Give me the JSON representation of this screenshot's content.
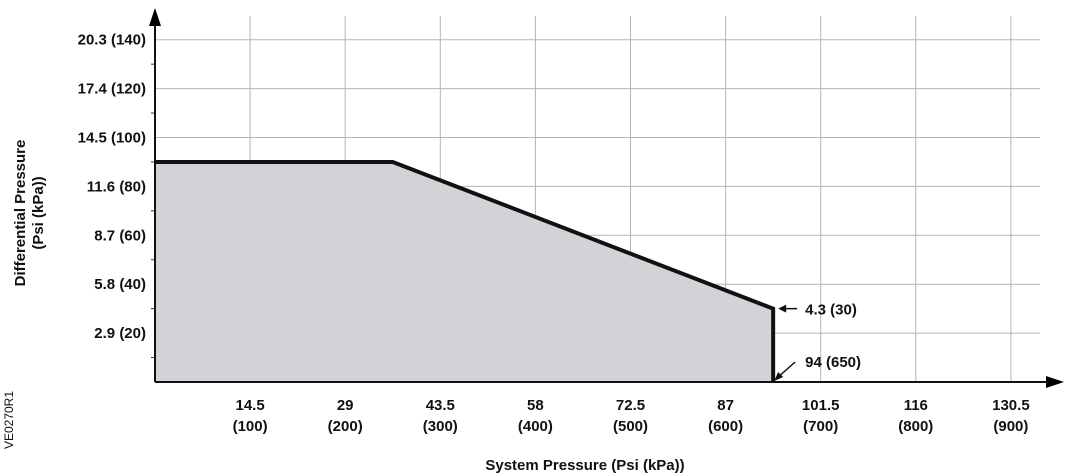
{
  "chart_data": {
    "type": "area",
    "xlabel": "System Pressure (Psi (kPa))",
    "ylabel_line1": "Differential Pressure",
    "ylabel_line2": "(Psi (kPa))",
    "x_ticks": [
      {
        "value": 100,
        "line1": "14.5",
        "line2": "(100)"
      },
      {
        "value": 200,
        "line1": "29",
        "line2": "(200)"
      },
      {
        "value": 300,
        "line1": "43.5",
        "line2": "(300)"
      },
      {
        "value": 400,
        "line1": "58",
        "line2": "(400)"
      },
      {
        "value": 500,
        "line1": "72.5",
        "line2": "(500)"
      },
      {
        "value": 600,
        "line1": "87",
        "line2": "(600)"
      },
      {
        "value": 700,
        "line1": "101.5",
        "line2": "(700)"
      },
      {
        "value": 800,
        "line1": "116",
        "line2": "(800)"
      },
      {
        "value": 900,
        "line1": "130.5",
        "line2": "(900)"
      }
    ],
    "y_ticks": [
      {
        "value": 20,
        "label": "2.9 (20)"
      },
      {
        "value": 40,
        "label": "5.8 (40)"
      },
      {
        "value": 60,
        "label": "8.7 (60)"
      },
      {
        "value": 80,
        "label": "11.6 (80)"
      },
      {
        "value": 100,
        "label": "14.5 (100)"
      },
      {
        "value": 120,
        "label": "17.4 (120)"
      },
      {
        "value": 140,
        "label": "20.3 (140)"
      }
    ],
    "xlim": [
      0,
      950
    ],
    "ylim": [
      0,
      150
    ],
    "grid": true,
    "series": [
      {
        "x": [
          0,
          250,
          650,
          650,
          650
        ],
        "y": [
          90,
          90,
          30,
          30,
          0
        ]
      }
    ],
    "annotations": [
      {
        "text": "4.3 (30)",
        "x": 650,
        "y": 30
      },
      {
        "text": "94 (650)",
        "x": 650,
        "y": 0
      }
    ],
    "fill_color": "#d1d3d6",
    "line_color": "#111111",
    "figure_code": "VE0270R1"
  }
}
